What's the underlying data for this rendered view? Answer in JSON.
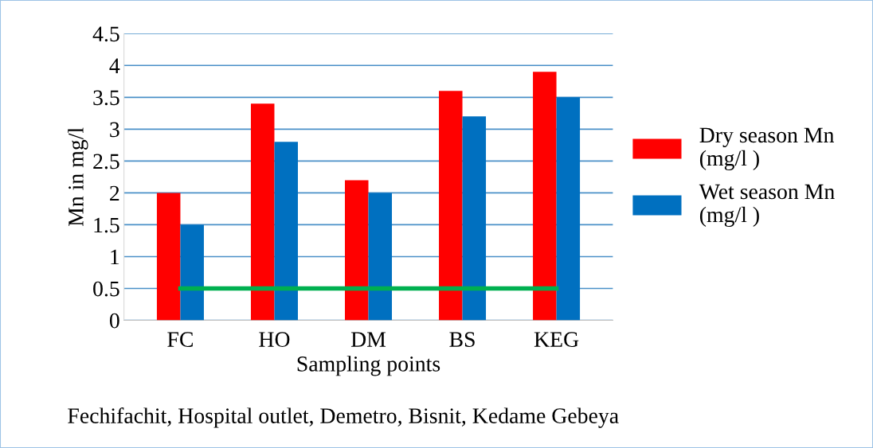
{
  "chart_data": {
    "type": "bar",
    "xlabel": "Sampling points",
    "ylabel": "Mn in mg/l",
    "categories": [
      "FC",
      "HO",
      "DM",
      "BS",
      "KEG"
    ],
    "series": [
      {
        "name": "Dry season Mn\n(mg/l )",
        "color": "#ff0000",
        "values": [
          2.0,
          3.4,
          2.2,
          3.6,
          3.9
        ]
      },
      {
        "name": "Wet season Mn\n(mg/l )",
        "color": "#0070c0",
        "values": [
          1.5,
          2.8,
          2.0,
          3.2,
          3.5
        ]
      },
      {
        "type": "line",
        "color": "#00b050",
        "values": [
          0.5,
          0.5,
          0.5,
          0.5,
          0.5
        ]
      }
    ],
    "ylim": [
      0,
      4.5
    ],
    "yticks": [
      0,
      0.5,
      1,
      1.5,
      2,
      2.5,
      3,
      3.5,
      4,
      4.5
    ],
    "grid": "y",
    "legend": "right",
    "annotations": [
      "Fechifachit, Hospital outlet, Demetro, Bisnit, Kedame Gebeya"
    ]
  }
}
